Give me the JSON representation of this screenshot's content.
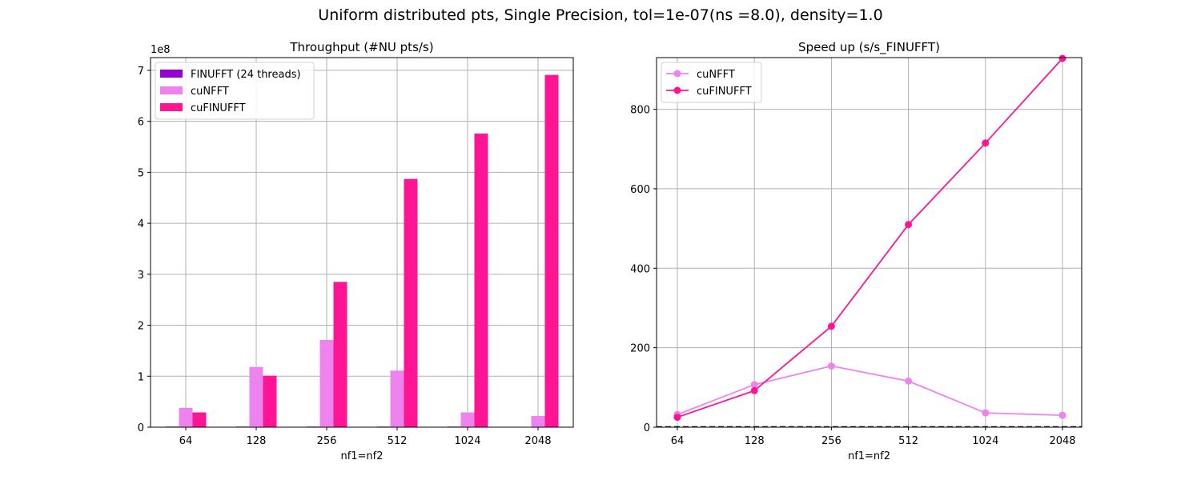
{
  "suptitle": "Uniform distributed pts, Single Precision, tol=1e-07(ns =8.0), density=1.0",
  "chart_data": [
    {
      "type": "bar",
      "title": "Throughput (#NU pts/s)",
      "xlabel": "nf1=nf2",
      "ylabel": "",
      "offset_label": "1e8",
      "scale": 100000000,
      "categories": [
        "64",
        "128",
        "256",
        "512",
        "1024",
        "2048"
      ],
      "ylim": [
        0,
        7.25
      ],
      "yticks": [
        0,
        1,
        2,
        3,
        4,
        5,
        6,
        7
      ],
      "grid": true,
      "legend_position": "upper-left",
      "series": [
        {
          "name": "FINUFFT (24 threads)",
          "color": "#9400d3",
          "values": [
            0.012,
            0.012,
            0.012,
            0.012,
            0.012,
            0.0
          ]
        },
        {
          "name": "cuNFFT",
          "color": "#ee82ee",
          "values": [
            0.38,
            1.18,
            1.71,
            1.11,
            0.29,
            0.22
          ]
        },
        {
          "name": "cuFINUFFT",
          "color": "#ff1493",
          "values": [
            0.29,
            1.01,
            2.85,
            4.87,
            5.76,
            6.91
          ]
        }
      ]
    },
    {
      "type": "line",
      "title": "Speed up (s/s_FINUFFT)",
      "xlabel": "nf1=nf2",
      "ylabel": "",
      "categories": [
        "64",
        "128",
        "256",
        "512",
        "1024",
        "2048"
      ],
      "ylim": [
        0,
        930
      ],
      "yticks": [
        0,
        200,
        400,
        600,
        800
      ],
      "grid": true,
      "legend_position": "upper-left",
      "reference_line": {
        "y": 1,
        "style": "dashed",
        "color": "#000000"
      },
      "series": [
        {
          "name": "cuNFFT",
          "color": "#ee82ee",
          "values": [
            32,
            107,
            154,
            116,
            36,
            30
          ]
        },
        {
          "name": "cuFINUFFT",
          "color": "#ff1493",
          "values": [
            25,
            92,
            254,
            510,
            715,
            928
          ]
        }
      ]
    }
  ]
}
